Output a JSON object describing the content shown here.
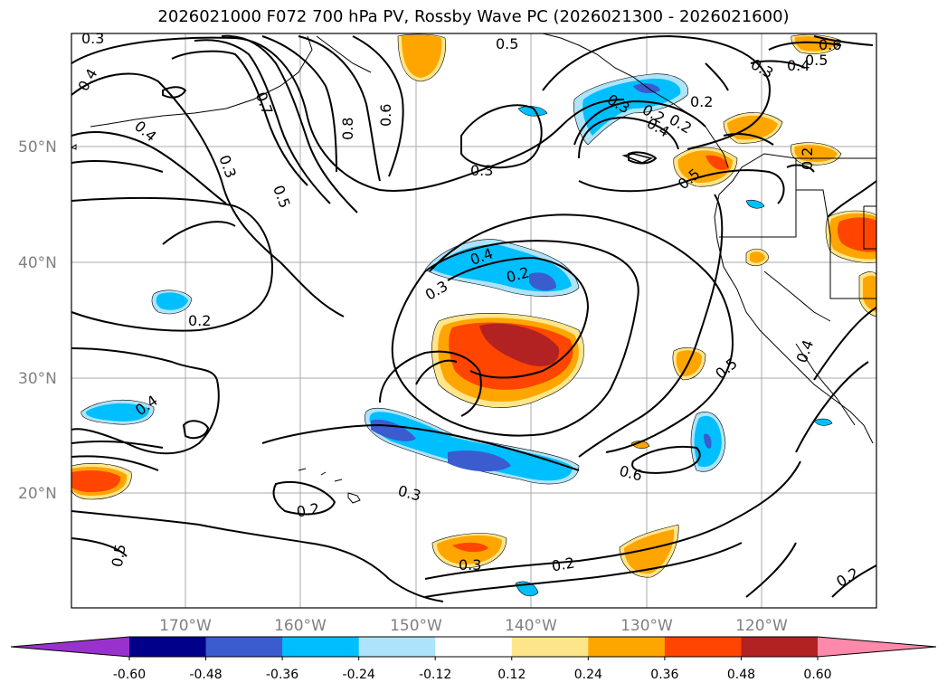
{
  "title": "2026021000 F072 700 hPa PV, Rossby Wave PC (2026021300 - 2026021600)",
  "map": {
    "lat_labels": [
      "50°N",
      "40°N",
      "30°N",
      "20°N"
    ],
    "lon_labels": [
      "170°W",
      "160°W",
      "150°W",
      "140°W",
      "130°W",
      "120°W"
    ],
    "contour_labels": [
      "0.3",
      "0.4",
      "0.4",
      "0.3",
      "0.7",
      "0.5",
      "0.8",
      "0.6",
      "0.5",
      "0.3",
      "0.2",
      "0.2",
      "0.4",
      "0.3",
      "0.2",
      "0.5",
      "0.6",
      "0.5",
      "0.3",
      "0.4",
      "0.2",
      "0.2",
      "0.4",
      "0.2",
      "0.3",
      "0.6",
      "0.2",
      "0.3",
      "0.2",
      "0.5",
      "0.2",
      "0.3",
      "0.4",
      "0.4",
      "0.5"
    ],
    "shading_colors": {
      "pos_light": "#fde68a",
      "pos_orange": "#ffa500",
      "pos_red": "#ff4500",
      "pos_dark": "#b22222",
      "neg_light": "#aee4fb",
      "neg_cyan": "#00bfff",
      "neg_blue": "#3a5ccf"
    }
  },
  "colorbar": {
    "ticks": [
      "-0.60",
      "-0.48",
      "-0.36",
      "-0.24",
      "-0.12",
      "0.12",
      "0.24",
      "0.36",
      "0.48",
      "0.60"
    ],
    "colors": [
      "#9932cc",
      "#00008b",
      "#3a5ccf",
      "#00bfff",
      "#aee4fb",
      "#ffffff",
      "#fde68a",
      "#ffa500",
      "#ff4500",
      "#b22222",
      "#ff89ab"
    ]
  }
}
